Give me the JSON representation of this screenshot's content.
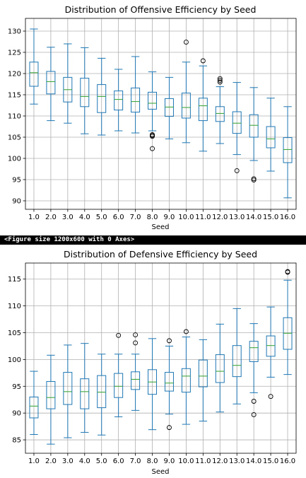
{
  "chart_data": [
    {
      "type": "box",
      "title": "Distribution of Offensive Efficiency by Seed",
      "xlabel": "Seed",
      "ylabel": "",
      "ylim": [
        88,
        133
      ],
      "yticks": [
        90,
        95,
        100,
        105,
        110,
        115,
        120,
        125,
        130
      ],
      "grid": true,
      "categories": [
        "1.0",
        "2.0",
        "3.0",
        "4.0",
        "5.0",
        "6.0",
        "7.0",
        "8.0",
        "9.0",
        "10.0",
        "11.0",
        "12.0",
        "13.0",
        "14.0",
        "15.0",
        "16.0"
      ],
      "boxes": [
        {
          "whislo": 112.8,
          "q1": 117.0,
          "med": 120.2,
          "q3": 122.7,
          "whishi": 130.5,
          "fliers": []
        },
        {
          "whislo": 108.9,
          "q1": 115.2,
          "med": 118.1,
          "q3": 120.5,
          "whishi": 126.2,
          "fliers": []
        },
        {
          "whislo": 108.3,
          "q1": 113.3,
          "med": 116.2,
          "q3": 119.1,
          "whishi": 127.0,
          "fliers": []
        },
        {
          "whislo": 105.8,
          "q1": 112.2,
          "med": 114.6,
          "q3": 118.9,
          "whishi": 126.1,
          "fliers": []
        },
        {
          "whislo": 105.5,
          "q1": 110.8,
          "med": 114.6,
          "q3": 117.4,
          "whishi": 123.6,
          "fliers": []
        },
        {
          "whislo": 106.5,
          "q1": 111.4,
          "med": 113.9,
          "q3": 115.9,
          "whishi": 121.0,
          "fliers": []
        },
        {
          "whislo": 106.0,
          "q1": 110.9,
          "med": 113.4,
          "q3": 116.6,
          "whishi": 124.0,
          "fliers": []
        },
        {
          "whislo": 106.5,
          "q1": 111.6,
          "med": 113.0,
          "q3": 115.6,
          "whishi": 120.4,
          "fliers": [
            102.3,
            105.2,
            105.4,
            105.6
          ]
        },
        {
          "whislo": 104.6,
          "q1": 109.9,
          "med": 112.1,
          "q3": 114.1,
          "whishi": 119.1,
          "fliers": []
        },
        {
          "whislo": 103.7,
          "q1": 109.5,
          "med": 112.0,
          "q3": 115.4,
          "whishi": 122.7,
          "fliers": [
            127.4
          ]
        },
        {
          "whislo": 101.7,
          "q1": 108.9,
          "med": 112.4,
          "q3": 114.2,
          "whishi": 121.8,
          "fliers": [
            123.0
          ]
        },
        {
          "whislo": 103.5,
          "q1": 108.7,
          "med": 110.6,
          "q3": 112.2,
          "whishi": 116.9,
          "fliers": [
            118.0,
            118.4,
            118.8
          ]
        },
        {
          "whislo": 100.9,
          "q1": 105.9,
          "med": 108.3,
          "q3": 111.0,
          "whishi": 117.9,
          "fliers": [
            97.1
          ]
        },
        {
          "whislo": 99.5,
          "q1": 105.0,
          "med": 107.8,
          "q3": 110.3,
          "whishi": 116.7,
          "fliers": [
            94.9,
            95.2
          ]
        },
        {
          "whislo": 97.0,
          "q1": 102.5,
          "med": 104.6,
          "q3": 107.5,
          "whishi": 114.2,
          "fliers": []
        },
        {
          "whislo": 90.7,
          "q1": 99.0,
          "med": 102.1,
          "q3": 104.9,
          "whishi": 112.2,
          "fliers": []
        }
      ]
    },
    {
      "type": "box",
      "title": "Distribution of Defensive Efficiency by Seed",
      "xlabel": "Seed",
      "ylabel": "",
      "ylim": [
        82.5,
        118
      ],
      "yticks": [
        85,
        90,
        95,
        100,
        105,
        110,
        115
      ],
      "grid": true,
      "categories": [
        "1.0",
        "2.0",
        "3.0",
        "4.0",
        "5.0",
        "6.0",
        "7.0",
        "8.0",
        "9.0",
        "10.0",
        "11.0",
        "12.0",
        "13.0",
        "14.0",
        "15.0",
        "16.0"
      ],
      "boxes": [
        {
          "whislo": 86.0,
          "q1": 89.1,
          "med": 91.3,
          "q3": 93.0,
          "whishi": 97.8,
          "fliers": []
        },
        {
          "whislo": 84.2,
          "q1": 90.8,
          "med": 92.9,
          "q3": 95.9,
          "whishi": 100.8,
          "fliers": []
        },
        {
          "whislo": 85.4,
          "q1": 91.6,
          "med": 94.0,
          "q3": 97.6,
          "whishi": 102.7,
          "fliers": []
        },
        {
          "whislo": 86.4,
          "q1": 90.8,
          "med": 94.0,
          "q3": 96.4,
          "whishi": 103.0,
          "fliers": []
        },
        {
          "whislo": 85.9,
          "q1": 91.0,
          "med": 93.9,
          "q3": 97.0,
          "whishi": 101.0,
          "fliers": []
        },
        {
          "whislo": 89.3,
          "q1": 92.9,
          "med": 95.0,
          "q3": 97.4,
          "whishi": 101.0,
          "fliers": [
            104.5
          ]
        },
        {
          "whislo": 90.5,
          "q1": 94.4,
          "med": 96.3,
          "q3": 97.7,
          "whishi": 101.0,
          "fliers": [
            103.1,
            104.6
          ]
        },
        {
          "whislo": 86.9,
          "q1": 93.5,
          "med": 95.8,
          "q3": 98.1,
          "whishi": 103.9,
          "fliers": []
        },
        {
          "whislo": 89.8,
          "q1": 94.1,
          "med": 95.6,
          "q3": 97.6,
          "whishi": 102.5,
          "fliers": [
            87.3,
            103.5
          ]
        },
        {
          "whislo": 87.9,
          "q1": 93.9,
          "med": 96.9,
          "q3": 98.3,
          "whishi": 104.2,
          "fliers": [
            105.2
          ]
        },
        {
          "whislo": 88.5,
          "q1": 94.9,
          "med": 96.9,
          "q3": 99.9,
          "whishi": 103.7,
          "fliers": []
        },
        {
          "whislo": 90.2,
          "q1": 95.7,
          "med": 97.8,
          "q3": 100.9,
          "whishi": 106.6,
          "fliers": []
        },
        {
          "whislo": 91.7,
          "q1": 96.8,
          "med": 98.9,
          "q3": 102.6,
          "whishi": 109.5,
          "fliers": []
        },
        {
          "whislo": 93.8,
          "q1": 99.6,
          "med": 102.2,
          "q3": 103.4,
          "whishi": 106.7,
          "fliers": [
            89.7,
            92.2
          ]
        },
        {
          "whislo": 96.7,
          "q1": 100.6,
          "med": 102.6,
          "q3": 104.4,
          "whishi": 109.8,
          "fliers": [
            93.1
          ]
        },
        {
          "whislo": 97.2,
          "q1": 101.9,
          "med": 104.9,
          "q3": 107.8,
          "whishi": 114.8,
          "fliers": [
            116.3,
            116.4
          ]
        }
      ]
    }
  ],
  "output_text": "<Figure size 1200x600 with 0 Axes>",
  "colors": {
    "box": "#1f77b4",
    "median": "#2ca02c",
    "grid": "#b0b0b0",
    "output_bg": "#000000",
    "output_fg": "#ffffff"
  }
}
